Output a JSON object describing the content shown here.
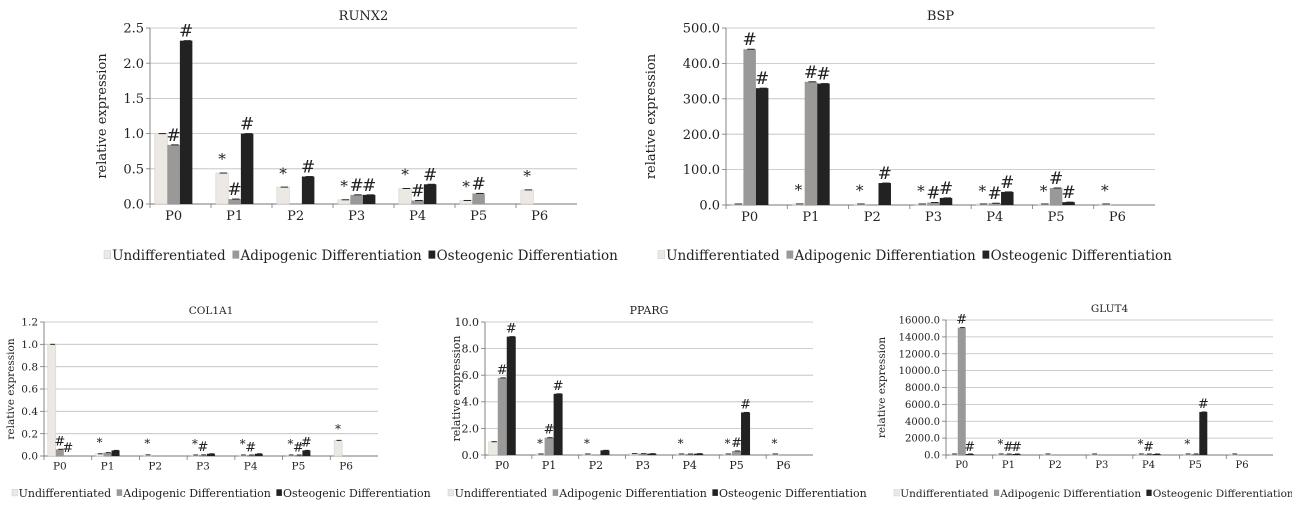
{
  "series_colors": [
    "#ece8e4",
    "#9b9898",
    "#222222"
  ],
  "chart_data": [
    {
      "type": "bar",
      "title": "RUNX2",
      "ylabel": "relative expression",
      "ylim": [
        0,
        2.5
      ],
      "yticks": [
        "0.0",
        "0.5",
        "1.0",
        "1.5",
        "2.0",
        "2.5"
      ],
      "categories": [
        "P0",
        "P1",
        "P2",
        "P3",
        "P4",
        "P5",
        "P6"
      ],
      "series": [
        {
          "name": "Undifferentiated",
          "values": [
            1.0,
            0.44,
            0.24,
            0.06,
            0.22,
            0.05,
            0.2
          ]
        },
        {
          "name": "Adipogenic Differentiation",
          "values": [
            0.84,
            0.07,
            null,
            0.13,
            0.05,
            0.15,
            null
          ]
        },
        {
          "name": "Osteogenic Differentiation",
          "values": [
            2.32,
            1.0,
            0.39,
            0.13,
            0.28,
            null,
            null
          ]
        }
      ],
      "annotations": [
        {
          "text": "#",
          "category": 0,
          "series": 1
        },
        {
          "text": "#",
          "category": 0,
          "series": 2
        },
        {
          "text": "*",
          "category": 1,
          "series": 0
        },
        {
          "text": "#",
          "category": 1,
          "series": 1
        },
        {
          "text": "#",
          "category": 1,
          "series": 2
        },
        {
          "text": "*",
          "category": 2,
          "series": 0
        },
        {
          "text": "#",
          "category": 2,
          "series": 2
        },
        {
          "text": "*",
          "category": 3,
          "series": 0
        },
        {
          "text": "#",
          "category": 3,
          "series": 1
        },
        {
          "text": "#",
          "category": 3,
          "series": 2
        },
        {
          "text": "*",
          "category": 4,
          "series": 0
        },
        {
          "text": "#",
          "category": 4,
          "series": 1
        },
        {
          "text": "#",
          "category": 4,
          "series": 2
        },
        {
          "text": "*",
          "category": 5,
          "series": 0
        },
        {
          "text": "#",
          "category": 5,
          "series": 1
        },
        {
          "text": "*",
          "category": 6,
          "series": 0
        }
      ],
      "grid": true,
      "legend": "bottom"
    },
    {
      "type": "bar",
      "title": "BSP",
      "ylabel": "relative expression",
      "ylim": [
        0,
        500
      ],
      "yticks": [
        "0.0",
        "100.0",
        "200.0",
        "300.0",
        "400.0",
        "500.0"
      ],
      "categories": [
        "P0",
        "P1",
        "P2",
        "P3",
        "P4",
        "P5",
        "P6"
      ],
      "series": [
        {
          "name": "Undifferentiated",
          "values": [
            1,
            3,
            2,
            1,
            1,
            1,
            2
          ]
        },
        {
          "name": "Adipogenic Differentiation",
          "values": [
            440,
            348,
            null,
            7,
            5,
            48,
            null
          ]
        },
        {
          "name": "Osteogenic Differentiation",
          "values": [
            330,
            343,
            62,
            20,
            37,
            8,
            null
          ]
        }
      ],
      "annotations": [
        {
          "text": "#",
          "category": 0,
          "series": 1
        },
        {
          "text": "#",
          "category": 0,
          "series": 2
        },
        {
          "text": "*",
          "category": 1,
          "series": 0
        },
        {
          "text": "#",
          "category": 1,
          "series": 1
        },
        {
          "text": "#",
          "category": 1,
          "series": 2
        },
        {
          "text": "*",
          "category": 2,
          "series": 0
        },
        {
          "text": "#",
          "category": 2,
          "series": 2
        },
        {
          "text": "*",
          "category": 3,
          "series": 0
        },
        {
          "text": "#",
          "category": 3,
          "series": 1
        },
        {
          "text": "#",
          "category": 3,
          "series": 2
        },
        {
          "text": "*",
          "category": 4,
          "series": 0
        },
        {
          "text": "#",
          "category": 4,
          "series": 1
        },
        {
          "text": "#",
          "category": 4,
          "series": 2
        },
        {
          "text": "*",
          "category": 5,
          "series": 0
        },
        {
          "text": "#",
          "category": 5,
          "series": 1
        },
        {
          "text": "#",
          "category": 5,
          "series": 2
        },
        {
          "text": "*",
          "category": 6,
          "series": 0
        }
      ],
      "grid": true,
      "legend": "bottom"
    },
    {
      "type": "bar",
      "title": "COL1A1",
      "ylabel": "relative expression",
      "ylim": [
        0,
        1.2
      ],
      "yticks": [
        "0.0",
        "0.2",
        "0.4",
        "0.6",
        "0.8",
        "1.0",
        "1.2"
      ],
      "categories": [
        "P0",
        "P1",
        "P2",
        "P3",
        "P4",
        "P5",
        "P6"
      ],
      "series": [
        {
          "name": "Undifferentiated",
          "values": [
            1.0,
            0.02,
            0.01,
            0.005,
            0.005,
            0.005,
            0.14
          ]
        },
        {
          "name": "Adipogenic Differentiation",
          "values": [
            0.06,
            0.03,
            null,
            0.01,
            0.005,
            0.005,
            null
          ]
        },
        {
          "name": "Osteogenic Differentiation",
          "values": [
            null,
            0.05,
            null,
            0.02,
            0.02,
            0.05,
            null
          ]
        }
      ],
      "annotations": [
        {
          "text": "#",
          "category": 0,
          "series": 1
        },
        {
          "text": "#",
          "category": 0,
          "series": 2
        },
        {
          "text": "*",
          "category": 1,
          "series": 0
        },
        {
          "text": "*",
          "category": 2,
          "series": 0
        },
        {
          "text": "*",
          "category": 3,
          "series": 0
        },
        {
          "text": "#",
          "category": 3,
          "series": 1
        },
        {
          "text": "*",
          "category": 4,
          "series": 0
        },
        {
          "text": "#",
          "category": 4,
          "series": 1
        },
        {
          "text": "*",
          "category": 5,
          "series": 0
        },
        {
          "text": "#",
          "category": 5,
          "series": 1
        },
        {
          "text": "#",
          "category": 5,
          "series": 2
        },
        {
          "text": "*",
          "category": 6,
          "series": 0
        }
      ],
      "grid": true,
      "legend": "bottom"
    },
    {
      "type": "bar",
      "title": "PPARG",
      "ylabel": "relative expression",
      "ylim": [
        0,
        10
      ],
      "yticks": [
        "0.0",
        "2.0",
        "4.0",
        "6.0",
        "8.0",
        "10.0"
      ],
      "categories": [
        "P0",
        "P1",
        "P2",
        "P3",
        "P4",
        "P5",
        "P6"
      ],
      "series": [
        {
          "name": "Undifferentiated",
          "values": [
            1.0,
            0.03,
            0.03,
            0.1,
            0.03,
            0.03,
            0.02
          ]
        },
        {
          "name": "Adipogenic Differentiation",
          "values": [
            5.8,
            1.3,
            null,
            0.1,
            0.05,
            0.3,
            null
          ]
        },
        {
          "name": "Osteogenic Differentiation",
          "values": [
            8.9,
            4.6,
            0.35,
            0.1,
            0.1,
            3.2,
            null
          ]
        }
      ],
      "annotations": [
        {
          "text": "#",
          "category": 0,
          "series": 1
        },
        {
          "text": "#",
          "category": 0,
          "series": 2
        },
        {
          "text": "*",
          "category": 1,
          "series": 0
        },
        {
          "text": "#",
          "category": 1,
          "series": 1
        },
        {
          "text": "#",
          "category": 1,
          "series": 2
        },
        {
          "text": "*",
          "category": 2,
          "series": 0
        },
        {
          "text": "*",
          "category": 4,
          "series": 0
        },
        {
          "text": "*",
          "category": 5,
          "series": 0
        },
        {
          "text": "#",
          "category": 5,
          "series": 1
        },
        {
          "text": "#",
          "category": 5,
          "series": 2
        },
        {
          "text": "*",
          "category": 6,
          "series": 0
        }
      ],
      "grid": true,
      "legend": "bottom"
    },
    {
      "type": "bar",
      "title": "GLUT4",
      "ylabel": "relative expression",
      "ylim": [
        0,
        16000
      ],
      "yticks": [
        "0.0",
        "2000.0",
        "4000.0",
        "6000.0",
        "8000.0",
        "10000.0",
        "12000.0",
        "14000.0",
        "16000.0"
      ],
      "categories": [
        "P0",
        "P1",
        "P2",
        "P3",
        "P4",
        "P5",
        "P6"
      ],
      "series": [
        {
          "name": "Undifferentiated",
          "values": [
            1,
            1,
            1,
            1,
            1,
            1,
            1
          ]
        },
        {
          "name": "Adipogenic Differentiation",
          "values": [
            15100,
            2,
            null,
            null,
            2,
            2,
            null
          ]
        },
        {
          "name": "Osteogenic Differentiation",
          "values": [
            2,
            2,
            null,
            null,
            2,
            5100,
            null
          ]
        }
      ],
      "annotations": [
        {
          "text": "#",
          "category": 0,
          "series": 1
        },
        {
          "text": "#",
          "category": 0,
          "series": 2
        },
        {
          "text": "*",
          "category": 1,
          "series": 0
        },
        {
          "text": "#",
          "category": 1,
          "series": 1
        },
        {
          "text": "#",
          "category": 1,
          "series": 2
        },
        {
          "text": "*",
          "category": 4,
          "series": 0
        },
        {
          "text": "#",
          "category": 4,
          "series": 1
        },
        {
          "text": "*",
          "category": 5,
          "series": 0
        },
        {
          "text": "#",
          "category": 5,
          "series": 2
        }
      ],
      "grid": true,
      "legend": "bottom"
    }
  ]
}
